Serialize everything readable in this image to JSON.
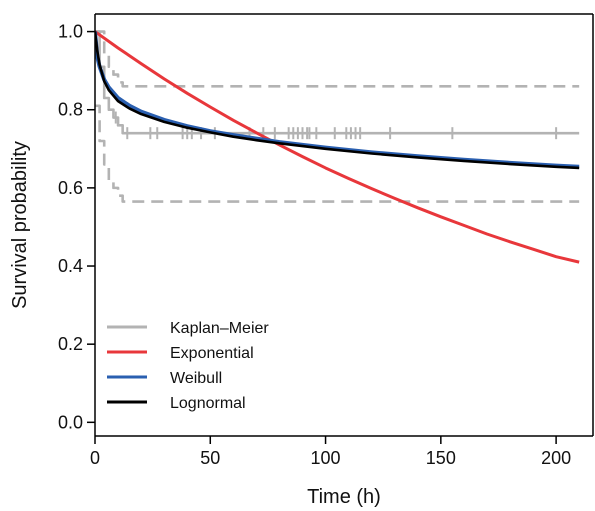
{
  "chart_data": {
    "type": "line",
    "title": "",
    "xlabel": "Time (h)",
    "ylabel": "Survival probability",
    "xlim": [
      0,
      210
    ],
    "ylim": [
      0,
      1.0
    ],
    "x_ticks": [
      0,
      50,
      100,
      150,
      200
    ],
    "x_tick_labels": [
      "0",
      "50",
      "100",
      "150",
      "200"
    ],
    "y_ticks": [
      0.0,
      0.2,
      0.4,
      0.6,
      0.8,
      1.0
    ],
    "y_tick_labels": [
      "0.0",
      "0.2",
      "0.4",
      "0.6",
      "0.8",
      "1.0"
    ],
    "grid": false,
    "legend_position": "bottom-left",
    "colors": {
      "kaplan_meier": "#b3b3b3",
      "exponential": "#e8373b",
      "weibull": "#2a5fb0",
      "lognormal": "#000000",
      "axis": "#000000"
    },
    "series": [
      {
        "name": "Kaplan–Meier",
        "kind": "step",
        "x": [
          0,
          2,
          4,
          6,
          8,
          10,
          12,
          210
        ],
        "y": [
          1.0,
          0.91,
          0.83,
          0.8,
          0.78,
          0.76,
          0.74,
          0.74
        ],
        "censor_times": [
          9,
          14,
          24,
          27,
          38,
          40,
          42,
          46,
          52,
          67,
          73,
          78,
          84,
          86,
          88,
          90,
          92,
          93,
          96,
          104,
          109,
          111,
          113,
          115,
          128,
          155,
          200
        ]
      },
      {
        "name": "",
        "kind": "step-dashed",
        "x": [
          0,
          2,
          4,
          6,
          8,
          10,
          12,
          210
        ],
        "y": [
          1.0,
          1.0,
          0.94,
          0.91,
          0.89,
          0.87,
          0.86,
          0.86
        ]
      },
      {
        "name": "",
        "kind": "step-dashed",
        "x": [
          0,
          2,
          4,
          6,
          8,
          10,
          12,
          210
        ],
        "y": [
          0.81,
          0.72,
          0.66,
          0.62,
          0.6,
          0.58,
          0.565,
          0.565
        ]
      },
      {
        "name": "Exponential",
        "kind": "curve",
        "x": [
          0,
          10,
          20,
          30,
          40,
          50,
          60,
          70,
          80,
          90,
          100,
          110,
          120,
          130,
          140,
          150,
          160,
          170,
          180,
          190,
          200,
          210
        ],
        "y": [
          1.0,
          0.958,
          0.918,
          0.879,
          0.842,
          0.807,
          0.773,
          0.741,
          0.71,
          0.68,
          0.651,
          0.624,
          0.598,
          0.573,
          0.549,
          0.526,
          0.504,
          0.482,
          0.462,
          0.443,
          0.424,
          0.41
        ]
      },
      {
        "name": "Weibull",
        "kind": "curve",
        "x": [
          0,
          1,
          2,
          4,
          6,
          10,
          15,
          20,
          30,
          40,
          50,
          60,
          70,
          80,
          90,
          100,
          120,
          140,
          160,
          180,
          200,
          210
        ],
        "y": [
          1.0,
          0.935,
          0.91,
          0.877,
          0.857,
          0.83,
          0.81,
          0.795,
          0.774,
          0.758,
          0.745,
          0.735,
          0.726,
          0.717,
          0.71,
          0.703,
          0.691,
          0.681,
          0.672,
          0.664,
          0.657,
          0.654
        ]
      },
      {
        "name": "Lognormal",
        "kind": "curve",
        "x": [
          0,
          1,
          2,
          4,
          6,
          10,
          15,
          20,
          30,
          40,
          50,
          60,
          70,
          80,
          90,
          100,
          120,
          140,
          160,
          180,
          200,
          210
        ],
        "y": [
          1.0,
          0.95,
          0.915,
          0.873,
          0.85,
          0.822,
          0.803,
          0.789,
          0.769,
          0.754,
          0.742,
          0.731,
          0.722,
          0.714,
          0.707,
          0.7,
          0.688,
          0.678,
          0.669,
          0.661,
          0.654,
          0.651
        ]
      }
    ],
    "legend": [
      {
        "label": "Kaplan–Meier",
        "color": "#b3b3b3"
      },
      {
        "label": "Exponential",
        "color": "#e8373b"
      },
      {
        "label": "Weibull",
        "color": "#2a5fb0"
      },
      {
        "label": "Lognormal",
        "color": "#000000"
      }
    ]
  }
}
